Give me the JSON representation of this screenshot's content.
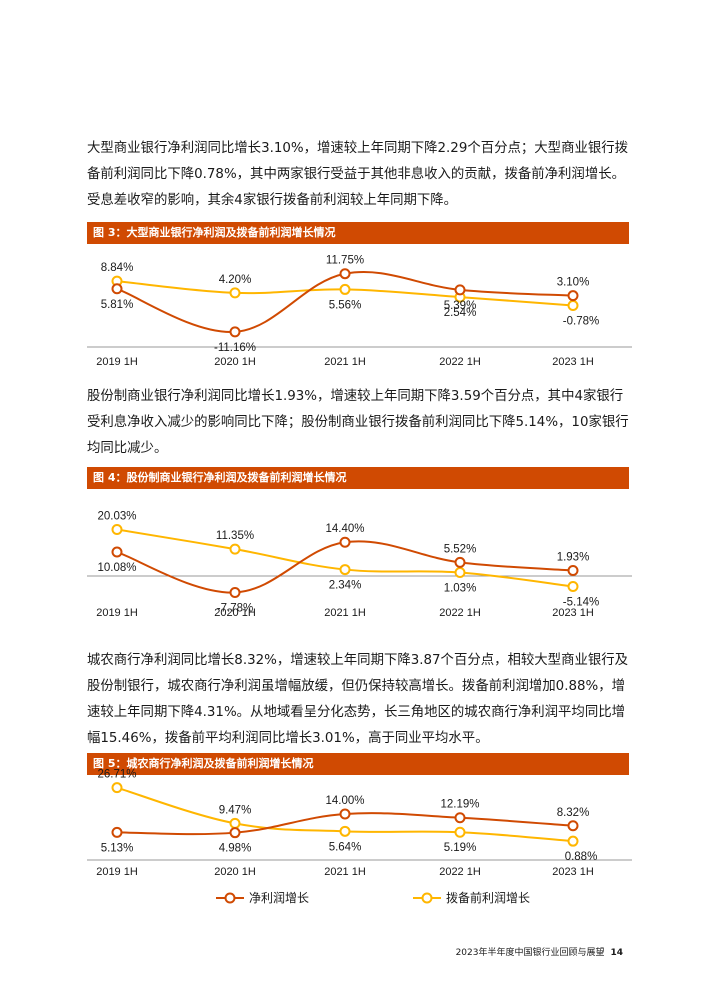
{
  "paragraphs": [
    "大型商业银行净利润同比增长3.10%，增速较上年同期下降2.29个百分点；大型商业银行拨备前利润同比下降0.78%，其中两家银行受益于其他非息收入的贡献，拨备前净利润增长。受息差收窄的影响，其余4家银行拨备前利润较上年同期下降。",
    "股份制商业银行净利润同比增长1.93%，增速较上年同期下降3.59个百分点，其中4家银行受利息净收入减少的影响同比下降；股份制商业银行拨备前利润同比下降5.14%，10家银行均同比减少。",
    "城农商行净利润同比增长8.32%，增速较上年同期下降3.87个百分点，相较大型商业银行及股份制银行，城农商行净利润虽增幅放缓，但仍保持较高增长。拨备前利润增加0.88%，增速较上年同期下降4.31%。从地域看呈分化态势，长三角地区的城农商行净利润平均同比增幅15.46%，拨备前平均利润同比增长3.01%，高于同业平均水平。"
  ],
  "colors": {
    "orange": "#d04a02",
    "yellow": "#ffb600",
    "axis": "#9a9a9a"
  },
  "legend": {
    "net": "净利润增长",
    "pre": "拨备前利润增长"
  },
  "footer": {
    "title": "2023年半年度中国银行业回顾与展望",
    "page": "14"
  },
  "chart_data": [
    {
      "type": "line",
      "title": "图 3：大型商业银行净利润及拨备前利润增长情况",
      "categories": [
        "2019 1H",
        "2020 1H",
        "2021 1H",
        "2022 1H",
        "2023 1H"
      ],
      "series": [
        {
          "name": "净利润增长",
          "values": [
            5.81,
            -11.16,
            11.75,
            5.39,
            3.1
          ],
          "labels": [
            "5.81%",
            "-11.16%",
            "11.75%",
            "5.39%",
            "3.10%"
          ]
        },
        {
          "name": "拨备前利润增长",
          "values": [
            8.84,
            4.2,
            5.56,
            2.54,
            -0.78
          ],
          "labels": [
            "8.84%",
            "4.20%",
            "5.56%",
            "2.54%",
            "-0.78%"
          ]
        }
      ]
    },
    {
      "type": "line",
      "title": "图 4：股份制商业银行净利润及拨备前利润增长情况",
      "categories": [
        "2019 1H",
        "2020 1H",
        "2021 1H",
        "2022 1H",
        "2023 1H"
      ],
      "series": [
        {
          "name": "净利润增长",
          "values": [
            10.08,
            -7.78,
            14.4,
            5.52,
            1.93
          ],
          "labels": [
            "10.08%",
            "-7.78%",
            "14.40%",
            "5.52%",
            "1.93%"
          ]
        },
        {
          "name": "拨备前利润增长",
          "values": [
            20.03,
            11.35,
            2.34,
            1.03,
            -5.14
          ],
          "labels": [
            "20.03%",
            "11.35%",
            "2.34%",
            "1.03%",
            "-5.14%"
          ]
        }
      ]
    },
    {
      "type": "line",
      "title": "图 5：城农商行净利润及拨备前利润增长情况",
      "categories": [
        "2019 1H",
        "2020 1H",
        "2021 1H",
        "2022 1H",
        "2023 1H"
      ],
      "series": [
        {
          "name": "净利润增长",
          "values": [
            5.13,
            4.98,
            14.0,
            12.19,
            8.32
          ],
          "labels": [
            "5.13%",
            "4.98%",
            "14.00%",
            "12.19%",
            "8.32%"
          ]
        },
        {
          "name": "拨备前利润增长",
          "values": [
            26.71,
            9.47,
            5.64,
            5.19,
            0.88
          ],
          "labels": [
            "26.71%",
            "9.47%",
            "5.64%",
            "5.19%",
            "0.88%"
          ]
        }
      ]
    }
  ]
}
